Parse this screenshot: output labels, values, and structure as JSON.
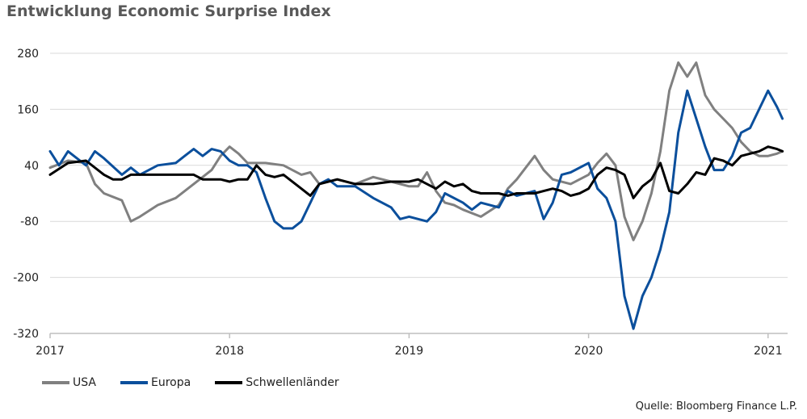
{
  "title": "Entwicklung Economic Surprise Index",
  "source": "Quelle: Bloomberg Finance L.P.",
  "colors": {
    "USA": "#808080",
    "Europa": "#0b4f9c",
    "Schwellenländer": "#000000",
    "grid": "#d9d9d9",
    "axis": "#bfbfbf"
  },
  "chart_data": {
    "type": "line",
    "title": "Entwicklung Economic Surprise Index",
    "xlabel": "",
    "ylabel": "",
    "xlim": [
      2017.0,
      2021.1
    ],
    "ylim": [
      -320,
      280
    ],
    "yticks": [
      280,
      160,
      40,
      -80,
      -200,
      -320
    ],
    "xticks": [
      {
        "label": "2017",
        "x": 2017
      },
      {
        "label": "2018",
        "x": 2018
      },
      {
        "label": "2019",
        "x": 2019
      },
      {
        "label": "2020",
        "x": 2020
      },
      {
        "label": "2021",
        "x": 2021
      }
    ],
    "grid": "horizontal",
    "legend": "bottom-left",
    "series": [
      {
        "name": "USA",
        "x": [
          2017.0,
          2017.1,
          2017.2,
          2017.25,
          2017.3,
          2017.4,
          2017.45,
          2017.5,
          2017.6,
          2017.7,
          2017.8,
          2017.9,
          2017.95,
          2018.0,
          2018.05,
          2018.1,
          2018.2,
          2018.3,
          2018.4,
          2018.45,
          2018.5,
          2018.6,
          2018.7,
          2018.8,
          2018.9,
          2019.0,
          2019.05,
          2019.1,
          2019.15,
          2019.2,
          2019.25,
          2019.3,
          2019.4,
          2019.5,
          2019.55,
          2019.6,
          2019.7,
          2019.75,
          2019.8,
          2019.9,
          2020.0,
          2020.05,
          2020.1,
          2020.15,
          2020.2,
          2020.25,
          2020.3,
          2020.35,
          2020.4,
          2020.45,
          2020.5,
          2020.55,
          2020.6,
          2020.65,
          2020.7,
          2020.75,
          2020.8,
          2020.85,
          2020.9,
          2020.95,
          2021.0,
          2021.05,
          2021.08
        ],
        "values": [
          35,
          50,
          45,
          0,
          -20,
          -35,
          -80,
          -70,
          -45,
          -30,
          0,
          30,
          60,
          80,
          65,
          45,
          45,
          40,
          20,
          25,
          0,
          10,
          0,
          15,
          5,
          -5,
          -5,
          25,
          -15,
          -40,
          -45,
          -55,
          -70,
          -45,
          -10,
          10,
          60,
          30,
          10,
          0,
          20,
          45,
          65,
          40,
          -70,
          -120,
          -80,
          -20,
          70,
          200,
          260,
          230,
          260,
          190,
          160,
          140,
          120,
          90,
          70,
          60,
          60,
          65,
          70
        ]
      },
      {
        "name": "Europa",
        "x": [
          2017.0,
          2017.05,
          2017.1,
          2017.2,
          2017.25,
          2017.3,
          2017.4,
          2017.45,
          2017.5,
          2017.6,
          2017.7,
          2017.75,
          2017.8,
          2017.85,
          2017.9,
          2017.95,
          2018.0,
          2018.05,
          2018.1,
          2018.15,
          2018.2,
          2018.25,
          2018.3,
          2018.35,
          2018.4,
          2018.45,
          2018.5,
          2018.55,
          2018.6,
          2018.7,
          2018.8,
          2018.9,
          2018.95,
          2019.0,
          2019.05,
          2019.1,
          2019.15,
          2019.2,
          2019.3,
          2019.35,
          2019.4,
          2019.5,
          2019.55,
          2019.6,
          2019.65,
          2019.7,
          2019.75,
          2019.8,
          2019.85,
          2019.9,
          2020.0,
          2020.05,
          2020.1,
          2020.15,
          2020.2,
          2020.25,
          2020.3,
          2020.35,
          2020.4,
          2020.45,
          2020.5,
          2020.55,
          2020.6,
          2020.65,
          2020.7,
          2020.75,
          2020.8,
          2020.85,
          2020.9,
          2020.95,
          2021.0,
          2021.05,
          2021.08
        ],
        "values": [
          70,
          40,
          70,
          40,
          70,
          55,
          20,
          35,
          20,
          40,
          45,
          60,
          75,
          60,
          75,
          70,
          50,
          40,
          40,
          25,
          -30,
          -80,
          -95,
          -95,
          -80,
          -40,
          0,
          10,
          -5,
          -5,
          -30,
          -50,
          -75,
          -70,
          -75,
          -80,
          -60,
          -20,
          -40,
          -55,
          -40,
          -50,
          -15,
          -25,
          -20,
          -15,
          -75,
          -40,
          20,
          25,
          45,
          -10,
          -30,
          -80,
          -240,
          -310,
          -240,
          -200,
          -140,
          -60,
          110,
          200,
          140,
          80,
          30,
          30,
          60,
          110,
          120,
          160,
          200,
          165,
          140
        ]
      },
      {
        "name": "Schwellenländer",
        "x": [
          2017.0,
          2017.1,
          2017.2,
          2017.3,
          2017.35,
          2017.4,
          2017.45,
          2017.5,
          2017.6,
          2017.7,
          2017.8,
          2017.85,
          2017.9,
          2017.95,
          2018.0,
          2018.05,
          2018.1,
          2018.15,
          2018.2,
          2018.25,
          2018.3,
          2018.4,
          2018.45,
          2018.5,
          2018.6,
          2018.7,
          2018.8,
          2018.9,
          2019.0,
          2019.05,
          2019.1,
          2019.15,
          2019.2,
          2019.25,
          2019.3,
          2019.35,
          2019.4,
          2019.5,
          2019.55,
          2019.6,
          2019.7,
          2019.75,
          2019.8,
          2019.85,
          2019.9,
          2019.95,
          2020.0,
          2020.05,
          2020.1,
          2020.15,
          2020.2,
          2020.25,
          2020.3,
          2020.35,
          2020.4,
          2020.45,
          2020.5,
          2020.55,
          2020.6,
          2020.65,
          2020.7,
          2020.75,
          2020.8,
          2020.85,
          2020.9,
          2020.95,
          2021.0,
          2021.05,
          2021.08
        ],
        "values": [
          20,
          45,
          50,
          20,
          10,
          10,
          20,
          20,
          20,
          20,
          20,
          10,
          10,
          10,
          5,
          10,
          10,
          40,
          20,
          15,
          20,
          -10,
          -25,
          0,
          10,
          0,
          0,
          5,
          5,
          10,
          0,
          -10,
          5,
          -5,
          0,
          -15,
          -20,
          -20,
          -25,
          -20,
          -20,
          -15,
          -10,
          -15,
          -25,
          -20,
          -10,
          20,
          35,
          30,
          20,
          -30,
          -5,
          10,
          45,
          -15,
          -20,
          0,
          25,
          20,
          55,
          50,
          40,
          60,
          65,
          70,
          80,
          75,
          70
        ]
      }
    ]
  }
}
